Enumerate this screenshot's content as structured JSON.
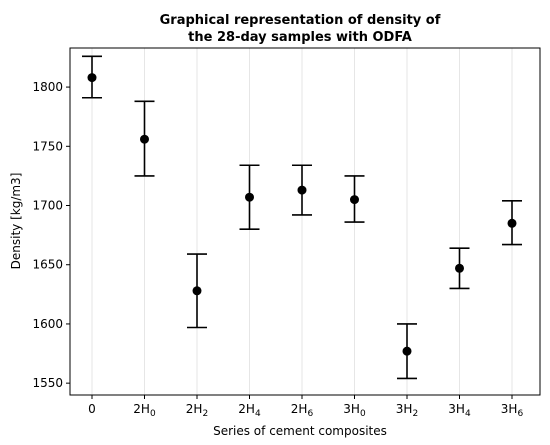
{
  "chart_data": {
    "type": "scatter",
    "title": [
      "Graphical representation of density of",
      "the 28-day samples with ODFA"
    ],
    "xlabel": "Series of cement composites",
    "ylabel": "Density [kg/m3]",
    "categories": [
      {
        "main": "0",
        "sub": ""
      },
      {
        "main": "2H",
        "sub": "0"
      },
      {
        "main": "2H",
        "sub": "2"
      },
      {
        "main": "2H",
        "sub": "4"
      },
      {
        "main": "2H",
        "sub": "6"
      },
      {
        "main": "3H",
        "sub": "0"
      },
      {
        "main": "3H",
        "sub": "2"
      },
      {
        "main": "3H",
        "sub": "4"
      },
      {
        "main": "3H",
        "sub": "6"
      }
    ],
    "values": [
      1808,
      1756,
      1628,
      1707,
      1713,
      1705,
      1577,
      1647,
      1685
    ],
    "error_low": [
      1791,
      1725,
      1597,
      1680,
      1692,
      1686,
      1554,
      1630,
      1667
    ],
    "error_high": [
      1826,
      1788,
      1659,
      1734,
      1734,
      1725,
      1600,
      1664,
      1704
    ],
    "ylim": [
      1540,
      1833
    ],
    "yticks": [
      1550,
      1600,
      1650,
      1700,
      1750,
      1800
    ],
    "grid": "vertical",
    "marker_color": "#000000"
  }
}
